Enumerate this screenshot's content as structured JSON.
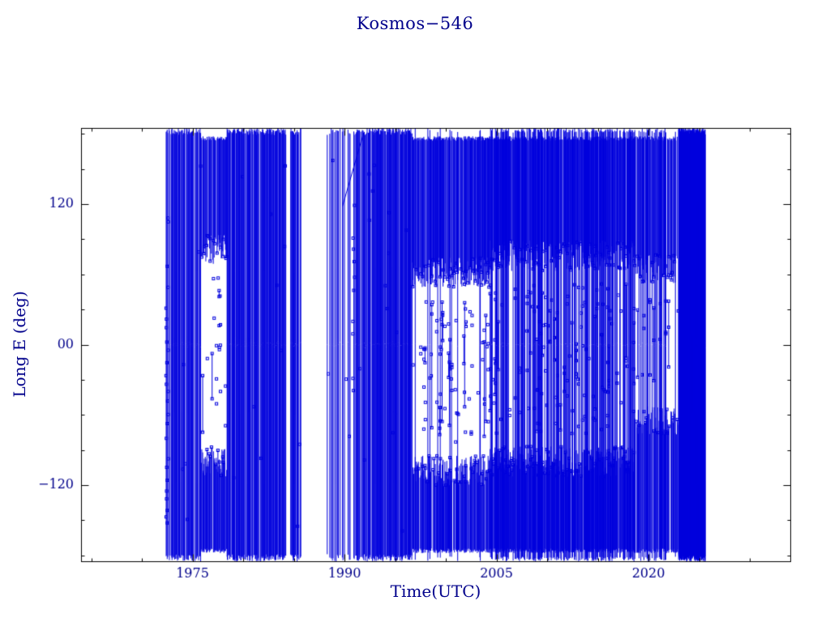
{
  "chart_data": {
    "type": "scatter",
    "title": "Kosmos−546",
    "xlabel": "Time(UTC)",
    "ylabel": "Long E (deg)",
    "xlim": [
      1964,
      2034
    ],
    "ylim": [
      -185,
      185
    ],
    "xticks": [
      1975,
      1990,
      2005,
      2020
    ],
    "xtick_labels": [
      "1975",
      "1990",
      "2005",
      "2020"
    ],
    "x_minor_step": 5,
    "yticks": [
      120,
      0,
      -120
    ],
    "ytick_labels": [
      "120",
      "00",
      "−120"
    ],
    "y_minor_step": 30,
    "grid": false,
    "legend": "none",
    "data_color": "#0000dd",
    "label_color": "#00008b",
    "frame_color": "#000000",
    "background": "#ffffff",
    "description": "Sub-satellite longitude (deg E) of Kosmos-546 versus time. Longitude wrapping produces dense vertical line coverage from ~1972 to ~2025, with a data gap near 1986-1988, sparse mid-longitude coverage during 1976-1978 and 1997-2004 (dense bands above ~+60 deg and below ~-100 deg), striped coverage 2004-2018, and a solid block ending ~2025.",
    "segments": [
      {
        "type": "marker_column",
        "t": 1972.5,
        "deg_min": -150,
        "deg_max": 115,
        "step": 9
      },
      {
        "type": "full",
        "t0": 1972.4,
        "t1": 1975.9,
        "density": 0.82
      },
      {
        "type": "bands",
        "t0": 1975.9,
        "t1": 1978.4,
        "top_band": [
          78,
          178
        ],
        "bottom_band": [
          -178,
          -96
        ],
        "band_density": 0.85,
        "full_prob": 0.07,
        "mid_marker_prob": 0.18
      },
      {
        "type": "full",
        "t0": 1978.4,
        "t1": 1984.3,
        "density": 0.8
      },
      {
        "type": "full",
        "t0": 1984.7,
        "t1": 1985.7,
        "density": 0.75
      },
      {
        "type": "full",
        "t0": 1988.3,
        "t1": 1990.6,
        "density": 0.4
      },
      {
        "type": "diagonal",
        "points": [
          [
            1989.8,
            118
          ],
          [
            1991.9,
            181
          ]
        ]
      },
      {
        "type": "marker_column",
        "t": 1990.9,
        "deg_min": -40,
        "deg_max": 120,
        "step": 12
      },
      {
        "type": "full",
        "t0": 1990.9,
        "t1": 1996.7,
        "density": 0.85
      },
      {
        "type": "bands",
        "t0": 1996.7,
        "t1": 2004.4,
        "top_band": [
          58,
          178
        ],
        "bottom_band": [
          -178,
          -104
        ],
        "band_density": 0.85,
        "full_prob": 0.05,
        "mid_marker_prob": 0.3
      },
      {
        "type": "bands",
        "t0": 2004.4,
        "t1": 2018.6,
        "top_band": [
          72,
          178
        ],
        "bottom_band": [
          -178,
          -96
        ],
        "band_density": 0.85,
        "full_prob": 0.5,
        "mid_marker_prob": 0.25
      },
      {
        "type": "bands",
        "t0": 2018.6,
        "t1": 2023.0,
        "top_band": [
          60,
          178
        ],
        "bottom_band": [
          -178,
          -60
        ],
        "band_density": 0.7,
        "full_prob": 0.3,
        "mid_marker_prob": 0.12
      },
      {
        "type": "full",
        "t0": 2023.0,
        "t1": 2025.6,
        "density": 1.0,
        "dt": 0.018
      }
    ]
  }
}
